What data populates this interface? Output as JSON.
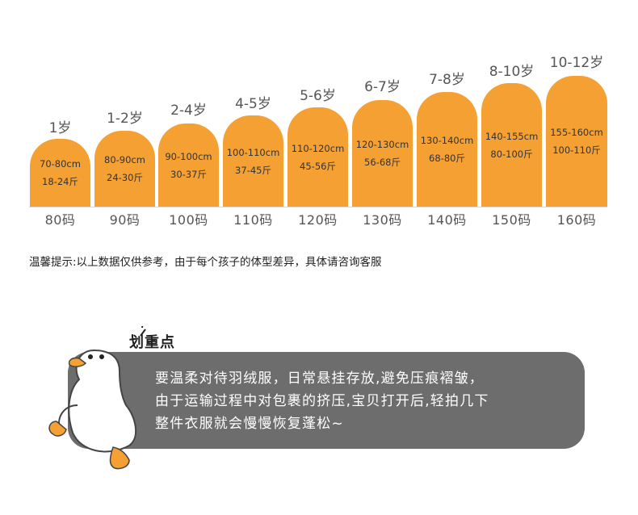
{
  "colors": {
    "bar": "#f5a033",
    "note_bg": "#6d6d6d",
    "duck_orange": "#f5a033"
  },
  "chart": {
    "columns": [
      {
        "age": "1岁",
        "height_cm": "70-80cm",
        "weight": "18-24斤",
        "size": "80码"
      },
      {
        "age": "1-2岁",
        "height_cm": "80-90cm",
        "weight": "24-30斤",
        "size": "90码"
      },
      {
        "age": "2-4岁",
        "height_cm": "90-100cm",
        "weight": "30-37斤",
        "size": "100码"
      },
      {
        "age": "4-5岁",
        "height_cm": "100-110cm",
        "weight": "37-45斤",
        "size": "110码"
      },
      {
        "age": "5-6岁",
        "height_cm": "110-120cm",
        "weight": "45-56斤",
        "size": "120码"
      },
      {
        "age": "6-7岁",
        "height_cm": "120-130cm",
        "weight": "56-68斤",
        "size": "130码"
      },
      {
        "age": "7-8岁",
        "height_cm": "130-140cm",
        "weight": "68-80斤",
        "size": "140码"
      },
      {
        "age": "8-10岁",
        "height_cm": "140-155cm",
        "weight": "80-100斤",
        "size": "150码"
      },
      {
        "age": "10-12岁",
        "height_cm": "155-160cm",
        "weight": "100-110斤",
        "size": "160码"
      }
    ]
  },
  "tip": "温馨提示:以上数据仅供参考，由于每个孩子的体型差异，具体请咨询客服",
  "note": {
    "title": "划重点",
    "lines": [
      "要温柔对待羽绒服，日常悬挂存放,避免压痕褶皱，",
      "由于运输过程中对包裹的挤压,宝贝打开后,轻拍几下",
      "整件衣服就会慢慢恢复蓬松~"
    ]
  },
  "icons": {
    "mascot": "duck-icon"
  }
}
